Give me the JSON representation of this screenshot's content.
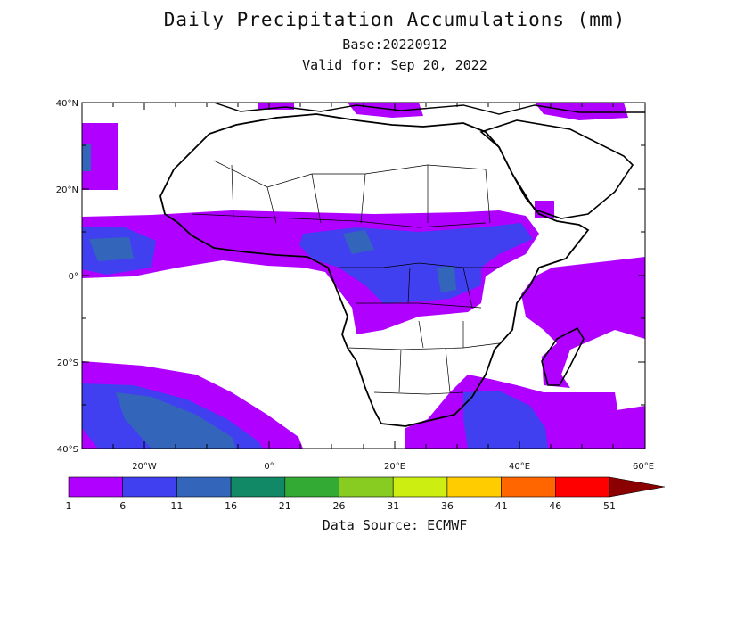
{
  "title": "Daily Precipitation Accumulations (mm)",
  "base": "Base:20220912",
  "valid": "Valid for: Sep 20, 2022",
  "source": "Data Source: ECMWF",
  "lat_ticks": [
    "40°N",
    "20°N",
    "0°",
    "20°S",
    "40°S"
  ],
  "lon_ticks": [
    "20°W",
    "0°",
    "20°E",
    "40°E",
    "60°E"
  ],
  "colorbar": {
    "labels": [
      "1",
      "6",
      "11",
      "16",
      "21",
      "26",
      "31",
      "36",
      "41",
      "46",
      "51"
    ],
    "colors": [
      "#b000ff",
      "#4040f0",
      "#3366bb",
      "#118866",
      "#33aa33",
      "#88cc22",
      "#ccee11",
      "#ffcc00",
      "#ff6600",
      "#ff0000",
      "#8b0000"
    ]
  }
}
